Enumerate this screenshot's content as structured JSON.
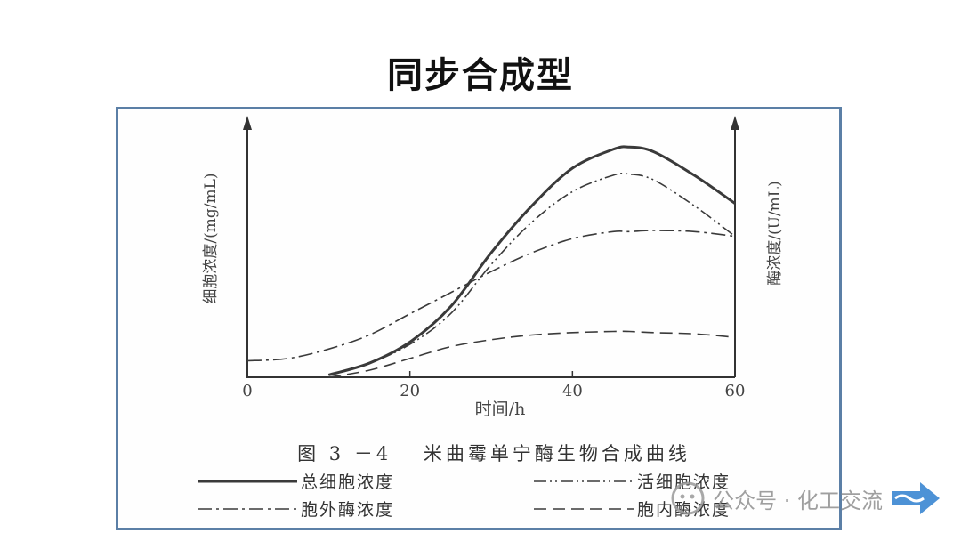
{
  "slide": {
    "title": "同步合成型"
  },
  "chart_data": {
    "type": "line",
    "caption": "图 3 －4　 米曲霉单宁酶生物合成曲线",
    "xlabel": "时间/h",
    "ylabel_left": "细胞浓度/(mg/mL)",
    "ylabel_right": "酶浓度/(U/mL)",
    "xlim": [
      0,
      60
    ],
    "ylim": [
      0,
      100
    ],
    "x_ticks": [
      "0",
      "20",
      "40",
      "60"
    ],
    "grid": false,
    "legend_position": "bottom",
    "x": [
      0,
      5,
      10,
      15,
      20,
      25,
      30,
      35,
      40,
      45,
      47,
      50,
      55,
      60
    ],
    "series": [
      {
        "name": "总细胞浓度",
        "style": "solid-thick",
        "values": [
          null,
          null,
          1,
          6,
          15,
          30,
          53,
          73,
          89,
          97,
          98,
          96,
          86,
          74
        ]
      },
      {
        "name": "活细胞浓度",
        "style": "dash-dot-dot",
        "values": [
          null,
          null,
          1,
          6,
          14,
          27,
          48,
          66,
          79,
          86,
          86.5,
          84,
          73,
          60
        ]
      },
      {
        "name": "胞外酶浓度",
        "style": "dash-dot",
        "values": [
          7,
          8,
          12,
          18,
          27,
          36,
          45,
          53,
          59,
          62,
          62,
          62.5,
          62,
          60
        ]
      },
      {
        "name": "胞内酶浓度",
        "style": "long-dash",
        "values": [
          null,
          null,
          0,
          3,
          8,
          13,
          16,
          18,
          19,
          19.5,
          19.5,
          19,
          18.5,
          17
        ]
      }
    ]
  },
  "watermark": {
    "text": "公众号 · 化工交流"
  }
}
